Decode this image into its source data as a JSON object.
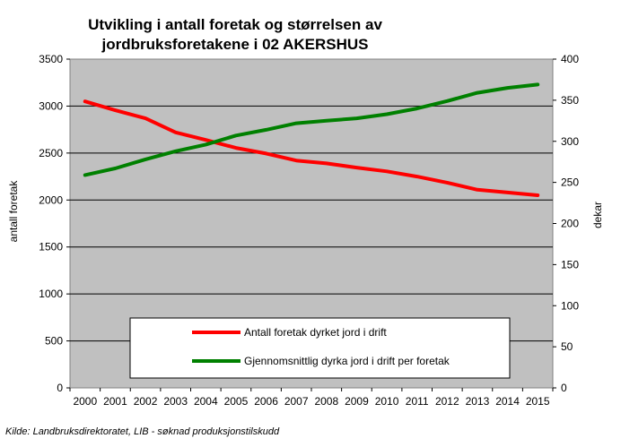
{
  "chart_data": {
    "type": "line",
    "title_line1": "Utvikling i antall foretak og størrelsen av",
    "title_line2": "jordbruksforetakene i 02 AKERSHUS",
    "ylabel_left": "antall foretak",
    "ylabel_right": "dekar",
    "x": [
      "2000",
      "2001",
      "2002",
      "2003",
      "2004",
      "2005",
      "2006",
      "2007",
      "2008",
      "2009",
      "2010",
      "2011",
      "2012",
      "2013",
      "2014",
      "2015"
    ],
    "ylim_left": [
      0,
      3500
    ],
    "ylim_right": [
      0,
      400
    ],
    "yticks_left": [
      "0",
      "500",
      "1000",
      "1500",
      "2000",
      "2500",
      "3000",
      "3500"
    ],
    "yticks_right": [
      "0",
      "50",
      "100",
      "150",
      "200",
      "250",
      "300",
      "350",
      "400"
    ],
    "grid": true,
    "plot_background": "#c0c0c0",
    "series": [
      {
        "name": "Antall foretak dyrket jord i drift",
        "axis": "left",
        "color": "#ff0000",
        "values": [
          3050,
          2955,
          2870,
          2720,
          2640,
          2555,
          2495,
          2420,
          2390,
          2345,
          2305,
          2250,
          2185,
          2110,
          2080,
          2050
        ]
      },
      {
        "name": "Gjennomsnittlig dyrka jord i drift per foretak",
        "axis": "right",
        "color": "#008000",
        "values": [
          259,
          267,
          278,
          288,
          296,
          307,
          314,
          322,
          325,
          328,
          333,
          340,
          349,
          359,
          365,
          369
        ]
      }
    ],
    "legend_position": "bottom-center",
    "source": "Kilde: Landbruksdirektoratet, LIB - søknad produksjonstilskudd"
  }
}
